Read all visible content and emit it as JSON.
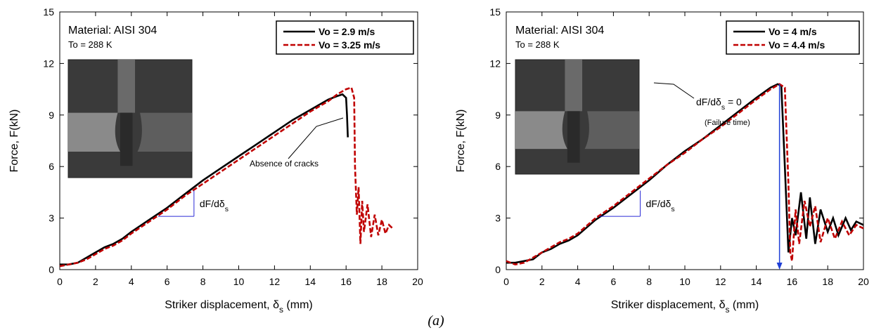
{
  "caption": "(a)",
  "chart_data": [
    {
      "type": "line",
      "xlabel": [
        "Striker displacement, δ",
        "s",
        " (mm)"
      ],
      "ylabel": "Force, F(kN)",
      "xlim": [
        0,
        20
      ],
      "ylim": [
        0,
        15
      ],
      "xticks": [
        0,
        2,
        4,
        6,
        8,
        10,
        12,
        14,
        16,
        18,
        20
      ],
      "yticks": [
        0,
        3,
        6,
        9,
        12,
        15
      ],
      "material": "Material: AISI 304",
      "temperature": "To = 288 K",
      "note": [
        "Absence of cracks"
      ],
      "slope_label": [
        "dF/dδ",
        "s"
      ],
      "slope_triangle": {
        "x": [
          5.5,
          7.5
        ],
        "y": [
          3.1,
          4.6
        ],
        "color": "#2b2bd6"
      },
      "series": [
        {
          "name": "Vo = 2.9 m/s",
          "color": "#000000",
          "x": [
            0,
            0.5,
            1,
            1.5,
            2,
            2.5,
            3,
            3.5,
            4,
            5,
            6,
            7,
            8,
            9,
            10,
            11,
            12,
            13,
            14,
            15,
            15.5,
            15.8,
            16,
            16.05,
            16.1
          ],
          "values": [
            0.3,
            0.3,
            0.4,
            0.7,
            1.0,
            1.3,
            1.5,
            1.8,
            2.2,
            2.9,
            3.6,
            4.4,
            5.2,
            5.9,
            6.6,
            7.3,
            8.0,
            8.7,
            9.3,
            9.9,
            10.1,
            10.2,
            10.0,
            9.0,
            7.7
          ]
        },
        {
          "name": "Vo = 3.25 m/s",
          "color": "#c00000",
          "x": [
            0,
            0.5,
            1,
            1.5,
            2,
            2.5,
            3,
            3.5,
            4,
            5,
            6,
            7,
            8,
            9,
            10,
            11,
            12,
            13,
            14,
            15,
            15.5,
            16,
            16.3,
            16.45,
            16.5,
            16.6,
            16.7,
            16.8,
            16.9,
            17,
            17.2,
            17.4,
            17.6,
            17.8,
            18,
            18.2,
            18.4,
            18.6
          ],
          "values": [
            0.2,
            0.3,
            0.4,
            0.6,
            0.9,
            1.2,
            1.4,
            1.7,
            2.1,
            2.8,
            3.5,
            4.3,
            5.0,
            5.7,
            6.4,
            7.1,
            7.8,
            8.5,
            9.2,
            9.8,
            10.2,
            10.5,
            10.6,
            10.0,
            6.0,
            3.2,
            4.8,
            1.5,
            4.0,
            2.2,
            3.8,
            1.9,
            3.2,
            2.0,
            2.9,
            2.1,
            2.6,
            2.4
          ]
        }
      ]
    },
    {
      "type": "line",
      "xlabel": [
        "Striker displacement, δ",
        "s",
        " (mm)"
      ],
      "ylabel": "Force, F(kN)",
      "xlim": [
        0,
        20
      ],
      "ylim": [
        0,
        15
      ],
      "xticks": [
        0,
        2,
        4,
        6,
        8,
        10,
        12,
        14,
        16,
        18,
        20
      ],
      "yticks": [
        0,
        3,
        6,
        9,
        12,
        15
      ],
      "material": "Material: AISI 304",
      "temperature": "To = 288 K",
      "note": [
        "dF/dδ",
        "s",
        " = 0"
      ],
      "note2": "(Failure time)",
      "slope_label": [
        "dF/dδ",
        "s"
      ],
      "slope_triangle": {
        "x": [
          5.2,
          7.5
        ],
        "y": [
          3.1,
          4.6
        ],
        "color": "#2b2bd6"
      },
      "arrow": {
        "x": 15.3,
        "y": [
          10.8,
          0
        ],
        "color": "#1f3fd6"
      },
      "series": [
        {
          "name": "Vo = 4 m/s",
          "color": "#000000",
          "x": [
            0,
            0.5,
            1,
            1.5,
            2,
            2.5,
            3,
            3.5,
            4,
            5,
            6,
            7,
            8,
            9,
            10,
            11,
            12,
            13,
            14,
            14.8,
            15.2,
            15.4,
            15.6,
            15.8,
            16,
            16.2,
            16.5,
            16.8,
            17,
            17.3,
            17.6,
            18,
            18.3,
            18.6,
            19,
            19.3,
            19.6,
            20
          ],
          "values": [
            0.4,
            0.4,
            0.5,
            0.6,
            1.0,
            1.2,
            1.5,
            1.7,
            2.0,
            2.9,
            3.6,
            4.4,
            5.2,
            6.1,
            6.9,
            7.6,
            8.4,
            9.2,
            10.0,
            10.6,
            10.8,
            10.7,
            6.0,
            1.0,
            3.0,
            2.0,
            4.5,
            1.8,
            4.2,
            1.5,
            3.5,
            2.2,
            3.0,
            2.0,
            3.0,
            2.3,
            2.8,
            2.6
          ]
        },
        {
          "name": "Vo = 4.4 m/s",
          "color": "#c00000",
          "x": [
            0,
            0.5,
            1,
            1.5,
            2,
            2.5,
            3,
            3.5,
            4,
            5,
            6,
            7,
            8,
            9,
            10,
            11,
            12,
            13,
            14,
            14.8,
            15.3,
            15.6,
            15.8,
            15.9,
            16,
            16.2,
            16.4,
            16.7,
            17,
            17.3,
            17.6,
            18,
            18.4,
            18.8,
            19.2,
            19.6,
            20
          ],
          "values": [
            0.5,
            0.3,
            0.4,
            0.7,
            1.0,
            1.3,
            1.6,
            1.8,
            2.1,
            3.0,
            3.7,
            4.5,
            5.3,
            6.1,
            6.8,
            7.6,
            8.3,
            9.1,
            9.9,
            10.5,
            10.8,
            10.6,
            5.0,
            1.0,
            0.5,
            3.5,
            1.5,
            4.0,
            2.5,
            3.7,
            1.6,
            3.0,
            1.8,
            2.8,
            2.0,
            2.6,
            2.4
          ]
        }
      ]
    }
  ]
}
